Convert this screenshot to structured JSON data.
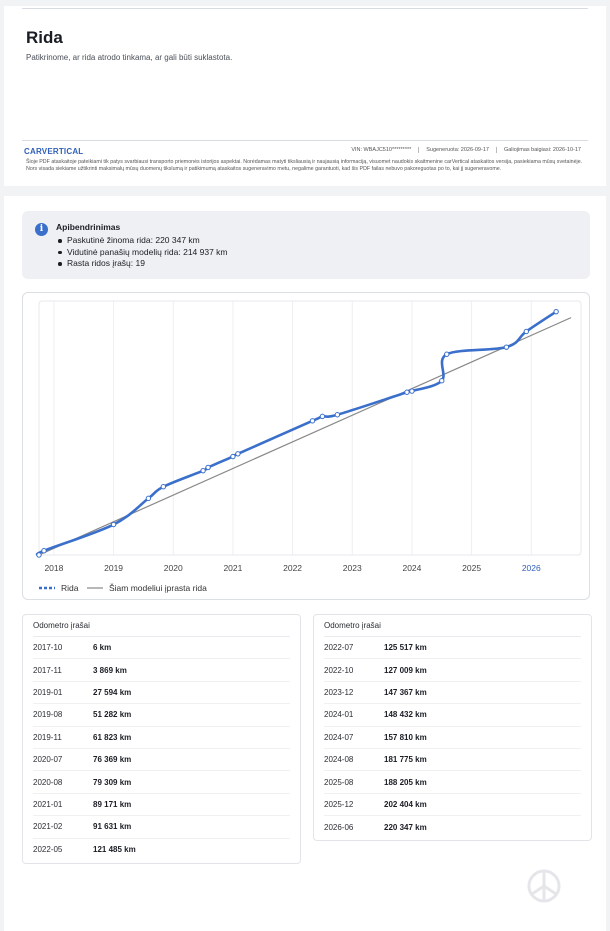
{
  "header": {
    "title": "Rida",
    "subtitle": "Patikrinome, ar rida atrodo tinkama, ar gali būti suklastota."
  },
  "footer": {
    "brand": "CARVERTICAL",
    "vin": "VIN: WBAJC510*********",
    "generated": "Sugeneruota: 2026-09-17",
    "valid_until": "Galiojimas baigiasi: 2026-10-17",
    "disclaimer": "Šioje PDF ataskaitoje pateikiami tik patys svarbiausi transporto priemonės istorijos aspektai. Norėdamas matyti tiksliausią ir naujausią informaciją, visuomet naudokis skaitmenine carVertical ataskaitos versija, pasiekiama mūsų svetainėje. Nors visada siekiame užtikrinti maksimalų mūsų duomenų tikslumą ir patikimumą ataskaitos sugeneravimo metu, negalime garantuoti, kad šis PDF failas nebuvo pakoreguotas po to, kai jį sugeneravome."
  },
  "summary": {
    "title": "Apibendrinimas",
    "items": [
      "Paskutinė žinoma rida: 220 347 km",
      "Vidutinė panašių modelių rida: 214 937 km",
      "Rasta ridos įrašų: 19"
    ]
  },
  "chart_data": {
    "type": "line",
    "x_ticks": [
      "2018",
      "2019",
      "2020",
      "2021",
      "2022",
      "2023",
      "2024",
      "2025",
      "2026"
    ],
    "highlight_tick": "2026",
    "series": [
      {
        "name": "Rida",
        "color": "#3a6fcb",
        "points": [
          [
            "2017-10",
            6
          ],
          [
            "2017-11",
            3869
          ],
          [
            "2019-01",
            27594
          ],
          [
            "2019-08",
            51282
          ],
          [
            "2019-11",
            61823
          ],
          [
            "2020-07",
            76369
          ],
          [
            "2020-08",
            79309
          ],
          [
            "2021-01",
            89171
          ],
          [
            "2021-02",
            91631
          ],
          [
            "2022-05",
            121485
          ],
          [
            "2022-07",
            125517
          ],
          [
            "2022-10",
            127009
          ],
          [
            "2023-12",
            147367
          ],
          [
            "2024-01",
            148432
          ],
          [
            "2024-07",
            157810
          ],
          [
            "2024-08",
            181775
          ],
          [
            "2025-08",
            188205
          ],
          [
            "2025-12",
            202404
          ],
          [
            "2026-06",
            220347
          ]
        ]
      },
      {
        "name": "Šiam modeliui įprasta rida",
        "color": "#888888",
        "points": [
          [
            "2017-10",
            0
          ],
          [
            "2026-09",
            214937
          ]
        ]
      }
    ],
    "ylim": [
      0,
      230000
    ],
    "grid": "vertical"
  },
  "tables": [
    {
      "title": "Odometro įrašai",
      "rows": [
        {
          "date": "2017-10",
          "value": "6 km"
        },
        {
          "date": "2017-11",
          "value": "3 869 km"
        },
        {
          "date": "2019-01",
          "value": "27 594 km"
        },
        {
          "date": "2019-08",
          "value": "51 282 km"
        },
        {
          "date": "2019-11",
          "value": "61 823 km"
        },
        {
          "date": "2020-07",
          "value": "76 369 km"
        },
        {
          "date": "2020-08",
          "value": "79 309 km"
        },
        {
          "date": "2021-01",
          "value": "89 171 km"
        },
        {
          "date": "2021-02",
          "value": "91 631 km"
        },
        {
          "date": "2022-05",
          "value": "121 485 km"
        }
      ]
    },
    {
      "title": "Odometro įrašai",
      "rows": [
        {
          "date": "2022-07",
          "value": "125 517 km"
        },
        {
          "date": "2022-10",
          "value": "127 009 km"
        },
        {
          "date": "2023-12",
          "value": "147 367 km"
        },
        {
          "date": "2024-01",
          "value": "148 432 km"
        },
        {
          "date": "2024-07",
          "value": "157 810 km"
        },
        {
          "date": "2024-08",
          "value": "181 775 km"
        },
        {
          "date": "2025-08",
          "value": "188 205 km"
        },
        {
          "date": "2025-12",
          "value": "202 404 km"
        },
        {
          "date": "2026-06",
          "value": "220 347 km"
        }
      ]
    }
  ]
}
